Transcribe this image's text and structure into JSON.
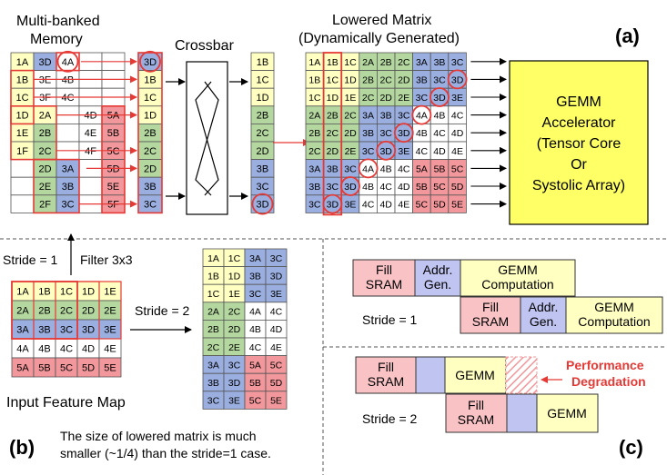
{
  "colors": {
    "yellow": "#ffffc2",
    "green": "#b4d7a0",
    "blue": "#9aaee0",
    "gray": "#c8c8c8",
    "red": "#f2979b",
    "white": "#ffffff",
    "accent": "#e53935",
    "gemm": "#ffff66",
    "fill_sram": "#f9c3c6",
    "addr": "#c0c4f0",
    "gemm_box": "#ffffc2"
  },
  "panel_a": {
    "tag": "(a)",
    "memory_title": [
      "Multi-banked",
      "Memory"
    ],
    "crossbar_title": "Crossbar",
    "lowered_title": [
      "Lowered Matrix",
      "(Dynamically Generated)"
    ],
    "accelerator_lines": [
      "GEMM",
      "Accelerator",
      "(Tensor Core",
      "Or",
      "Systolic Array)"
    ],
    "memory_grid": [
      [
        [
          "1A",
          "y"
        ],
        [
          "3D",
          "b"
        ],
        [
          "4A",
          "w"
        ],
        [
          "",
          ""
        ],
        [
          "",
          ""
        ]
      ],
      [
        [
          "1B",
          "y"
        ],
        [
          "3E",
          "w"
        ],
        [
          "4B",
          "w"
        ],
        [
          "",
          ""
        ],
        [
          "",
          ""
        ]
      ],
      [
        [
          "1C",
          "y"
        ],
        [
          "3F",
          "w"
        ],
        [
          "4C",
          "w"
        ],
        [
          "",
          ""
        ],
        [
          "",
          ""
        ]
      ],
      [
        [
          "1D",
          "y"
        ],
        [
          "2A",
          "y"
        ],
        [
          "",
          ""
        ],
        [
          "4D",
          "w"
        ],
        [
          "5A",
          "r"
        ]
      ],
      [
        [
          "1E",
          "y"
        ],
        [
          "2B",
          "g"
        ],
        [
          "",
          ""
        ],
        [
          "4E",
          "w"
        ],
        [
          "5B",
          "r"
        ]
      ],
      [
        [
          "1F",
          "y"
        ],
        [
          "2C",
          "g"
        ],
        [
          "",
          ""
        ],
        [
          "4F",
          "w"
        ],
        [
          "5C",
          "r"
        ]
      ],
      [
        [
          "",
          ""
        ],
        [
          "2D",
          "g"
        ],
        [
          "3A",
          "b"
        ],
        [
          "",
          ""
        ],
        [
          "5D",
          "r"
        ]
      ],
      [
        [
          "",
          ""
        ],
        [
          "2E",
          "g"
        ],
        [
          "3B",
          "b"
        ],
        [
          "",
          ""
        ],
        [
          "5E",
          "r"
        ]
      ],
      [
        [
          "",
          ""
        ],
        [
          "2F",
          "g"
        ],
        [
          "3C",
          "b"
        ],
        [
          "",
          ""
        ],
        [
          "5F",
          "r"
        ]
      ]
    ],
    "gathered_col": [
      [
        "3D",
        "b"
      ],
      [
        "1B",
        "y"
      ],
      [
        "1C",
        "y"
      ],
      [
        "1D",
        "y"
      ],
      [
        "2B",
        "g"
      ],
      [
        "2C",
        "g"
      ],
      [
        "2D",
        "g"
      ],
      [
        "3B",
        "b"
      ],
      [
        "3C",
        "b"
      ]
    ],
    "output_col": [
      [
        "1B",
        "y"
      ],
      [
        "1C",
        "y"
      ],
      [
        "1D",
        "y"
      ],
      [
        "2B",
        "g"
      ],
      [
        "2C",
        "g"
      ],
      [
        "2D",
        "g"
      ],
      [
        "3B",
        "b"
      ],
      [
        "3C",
        "b"
      ],
      [
        "3D",
        "b"
      ]
    ],
    "lowered_grid": [
      [
        [
          "1A",
          "y"
        ],
        [
          "1B",
          "y"
        ],
        [
          "1C",
          "y"
        ],
        [
          "2A",
          "g"
        ],
        [
          "2B",
          "g"
        ],
        [
          "2C",
          "g"
        ],
        [
          "3A",
          "b"
        ],
        [
          "3B",
          "b"
        ],
        [
          "3C",
          "b"
        ]
      ],
      [
        [
          "1B",
          "y"
        ],
        [
          "1C",
          "y"
        ],
        [
          "1D",
          "y"
        ],
        [
          "2B",
          "g"
        ],
        [
          "2C",
          "g"
        ],
        [
          "2D",
          "g"
        ],
        [
          "3B",
          "b"
        ],
        [
          "3C",
          "b"
        ],
        [
          "3D",
          "b"
        ]
      ],
      [
        [
          "1C",
          "y"
        ],
        [
          "1D",
          "y"
        ],
        [
          "1E",
          "y"
        ],
        [
          "2C",
          "g"
        ],
        [
          "2D",
          "g"
        ],
        [
          "2E",
          "g"
        ],
        [
          "3C",
          "b"
        ],
        [
          "3D",
          "b"
        ],
        [
          "3E",
          "b"
        ]
      ],
      [
        [
          "2A",
          "g"
        ],
        [
          "2B",
          "g"
        ],
        [
          "2C",
          "g"
        ],
        [
          "3A",
          "b"
        ],
        [
          "3B",
          "b"
        ],
        [
          "3C",
          "b"
        ],
        [
          "4A",
          "w"
        ],
        [
          "4B",
          "w"
        ],
        [
          "4C",
          "w"
        ]
      ],
      [
        [
          "2B",
          "g"
        ],
        [
          "2C",
          "g"
        ],
        [
          "2D",
          "g"
        ],
        [
          "3B",
          "b"
        ],
        [
          "3C",
          "b"
        ],
        [
          "3D",
          "b"
        ],
        [
          "4B",
          "w"
        ],
        [
          "4C",
          "w"
        ],
        [
          "4D",
          "w"
        ]
      ],
      [
        [
          "2C",
          "g"
        ],
        [
          "2D",
          "g"
        ],
        [
          "2E",
          "g"
        ],
        [
          "3C",
          "b"
        ],
        [
          "3D",
          "b"
        ],
        [
          "3E",
          "b"
        ],
        [
          "4C",
          "w"
        ],
        [
          "4D",
          "w"
        ],
        [
          "4E",
          "w"
        ]
      ],
      [
        [
          "3A",
          "b"
        ],
        [
          "3B",
          "b"
        ],
        [
          "3C",
          "b"
        ],
        [
          "4A",
          "w"
        ],
        [
          "4B",
          "w"
        ],
        [
          "4C",
          "w"
        ],
        [
          "5A",
          "r"
        ],
        [
          "5B",
          "r"
        ],
        [
          "5C",
          "r"
        ]
      ],
      [
        [
          "3B",
          "b"
        ],
        [
          "3C",
          "b"
        ],
        [
          "3D",
          "b"
        ],
        [
          "4B",
          "w"
        ],
        [
          "4C",
          "w"
        ],
        [
          "4D",
          "w"
        ],
        [
          "5B",
          "r"
        ],
        [
          "5C",
          "r"
        ],
        [
          "5D",
          "r"
        ]
      ],
      [
        [
          "3C",
          "b"
        ],
        [
          "3D",
          "b"
        ],
        [
          "3E",
          "b"
        ],
        [
          "4C",
          "w"
        ],
        [
          "4D",
          "w"
        ],
        [
          "4E",
          "w"
        ],
        [
          "5C",
          "r"
        ],
        [
          "5D",
          "r"
        ],
        [
          "5E",
          "r"
        ]
      ]
    ],
    "lowered_circles": [
      [
        1,
        8
      ],
      [
        2,
        7
      ],
      [
        3,
        6
      ],
      [
        4,
        5
      ],
      [
        5,
        4
      ],
      [
        6,
        3
      ],
      [
        7,
        2
      ],
      [
        8,
        1
      ]
    ]
  },
  "panel_b": {
    "tag": "(b)",
    "stride1_label": "Stride = 1",
    "filter_label": "Filter 3x3",
    "stride2_label": "Stride = 2",
    "ifm_label": "Input Feature Map",
    "note_lines": [
      "The size of lowered matrix is much",
      "smaller (~1/4) than the stride=1 case."
    ],
    "ifm_grid": [
      [
        [
          "1A",
          "y"
        ],
        [
          "1B",
          "y"
        ],
        [
          "1C",
          "y"
        ],
        [
          "1D",
          "y"
        ],
        [
          "1E",
          "y"
        ]
      ],
      [
        [
          "2A",
          "g"
        ],
        [
          "2B",
          "g"
        ],
        [
          "2C",
          "g"
        ],
        [
          "2D",
          "g"
        ],
        [
          "2E",
          "g"
        ]
      ],
      [
        [
          "3A",
          "b"
        ],
        [
          "3B",
          "b"
        ],
        [
          "3C",
          "b"
        ],
        [
          "3D",
          "b"
        ],
        [
          "3E",
          "b"
        ]
      ],
      [
        [
          "4A",
          "w"
        ],
        [
          "4B",
          "w"
        ],
        [
          "4C",
          "w"
        ],
        [
          "4D",
          "w"
        ],
        [
          "4E",
          "w"
        ]
      ],
      [
        [
          "5A",
          "r"
        ],
        [
          "5B",
          "r"
        ],
        [
          "5C",
          "r"
        ],
        [
          "5D",
          "r"
        ],
        [
          "5E",
          "r"
        ]
      ]
    ],
    "lowered_s2": [
      [
        [
          "1A",
          "y"
        ],
        [
          "1C",
          "y"
        ],
        [
          "3A",
          "b"
        ],
        [
          "3C",
          "b"
        ]
      ],
      [
        [
          "1B",
          "y"
        ],
        [
          "1D",
          "y"
        ],
        [
          "3B",
          "b"
        ],
        [
          "3D",
          "b"
        ]
      ],
      [
        [
          "1C",
          "y"
        ],
        [
          "1E",
          "y"
        ],
        [
          "3C",
          "b"
        ],
        [
          "3E",
          "b"
        ]
      ],
      [
        [
          "2A",
          "g"
        ],
        [
          "2C",
          "g"
        ],
        [
          "4A",
          "w"
        ],
        [
          "4C",
          "w"
        ]
      ],
      [
        [
          "2B",
          "g"
        ],
        [
          "2D",
          "g"
        ],
        [
          "4B",
          "w"
        ],
        [
          "4D",
          "w"
        ]
      ],
      [
        [
          "2C",
          "g"
        ],
        [
          "2E",
          "g"
        ],
        [
          "4C",
          "w"
        ],
        [
          "4E",
          "w"
        ]
      ],
      [
        [
          "3A",
          "b"
        ],
        [
          "3C",
          "b"
        ],
        [
          "5A",
          "r"
        ],
        [
          "5C",
          "r"
        ]
      ],
      [
        [
          "3B",
          "b"
        ],
        [
          "3D",
          "b"
        ],
        [
          "5B",
          "r"
        ],
        [
          "5D",
          "r"
        ]
      ],
      [
        [
          "3C",
          "b"
        ],
        [
          "3E",
          "b"
        ],
        [
          "5C",
          "r"
        ],
        [
          "5E",
          "r"
        ]
      ]
    ]
  },
  "panel_c": {
    "tag": "(c)",
    "fill_sram": [
      "Fill",
      "SRAM"
    ],
    "addr_gen": [
      "Addr.",
      "Gen."
    ],
    "gemm_computation": [
      "GEMM",
      "Computation"
    ],
    "gemm": "GEMM",
    "stride1_label": "Stride = 1",
    "stride2_label": "Stride = 2",
    "perf_degradation": [
      "Performance",
      "Degradation"
    ]
  }
}
